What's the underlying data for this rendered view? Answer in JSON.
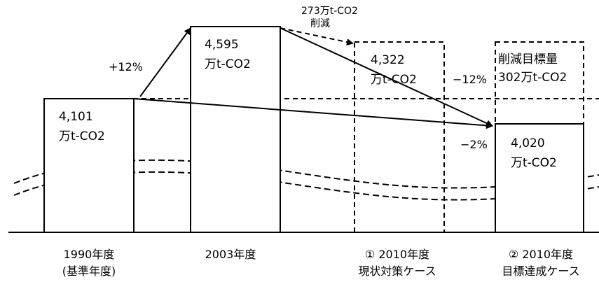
{
  "bars": [
    {
      "value": "4,101",
      "unit": "万t-CO2",
      "caption_line1": "1990年度",
      "caption_line2": "(基準年度)"
    },
    {
      "value": "4,595",
      "unit": "万t-CO2",
      "caption_line1": "2003年度",
      "caption_line2": ""
    },
    {
      "value": "4,322",
      "unit": "万t-CO2",
      "caption_line1": "① 2010年度",
      "caption_line2": "現状対策ケース"
    },
    {
      "value": "4,020",
      "unit": "万t-CO2",
      "caption_line1": "② 2010年度",
      "caption_line2": "目標達成ケース"
    }
  ],
  "changes": {
    "increase_2003": "+12%",
    "reduction_amount": "273万t-CO2",
    "reduction_word": "削減",
    "target_vs_current": "−12%",
    "target_vs_base": "−2%"
  },
  "target_box": {
    "line1": "削減目標量",
    "line2": "302万t-CO2"
  }
}
